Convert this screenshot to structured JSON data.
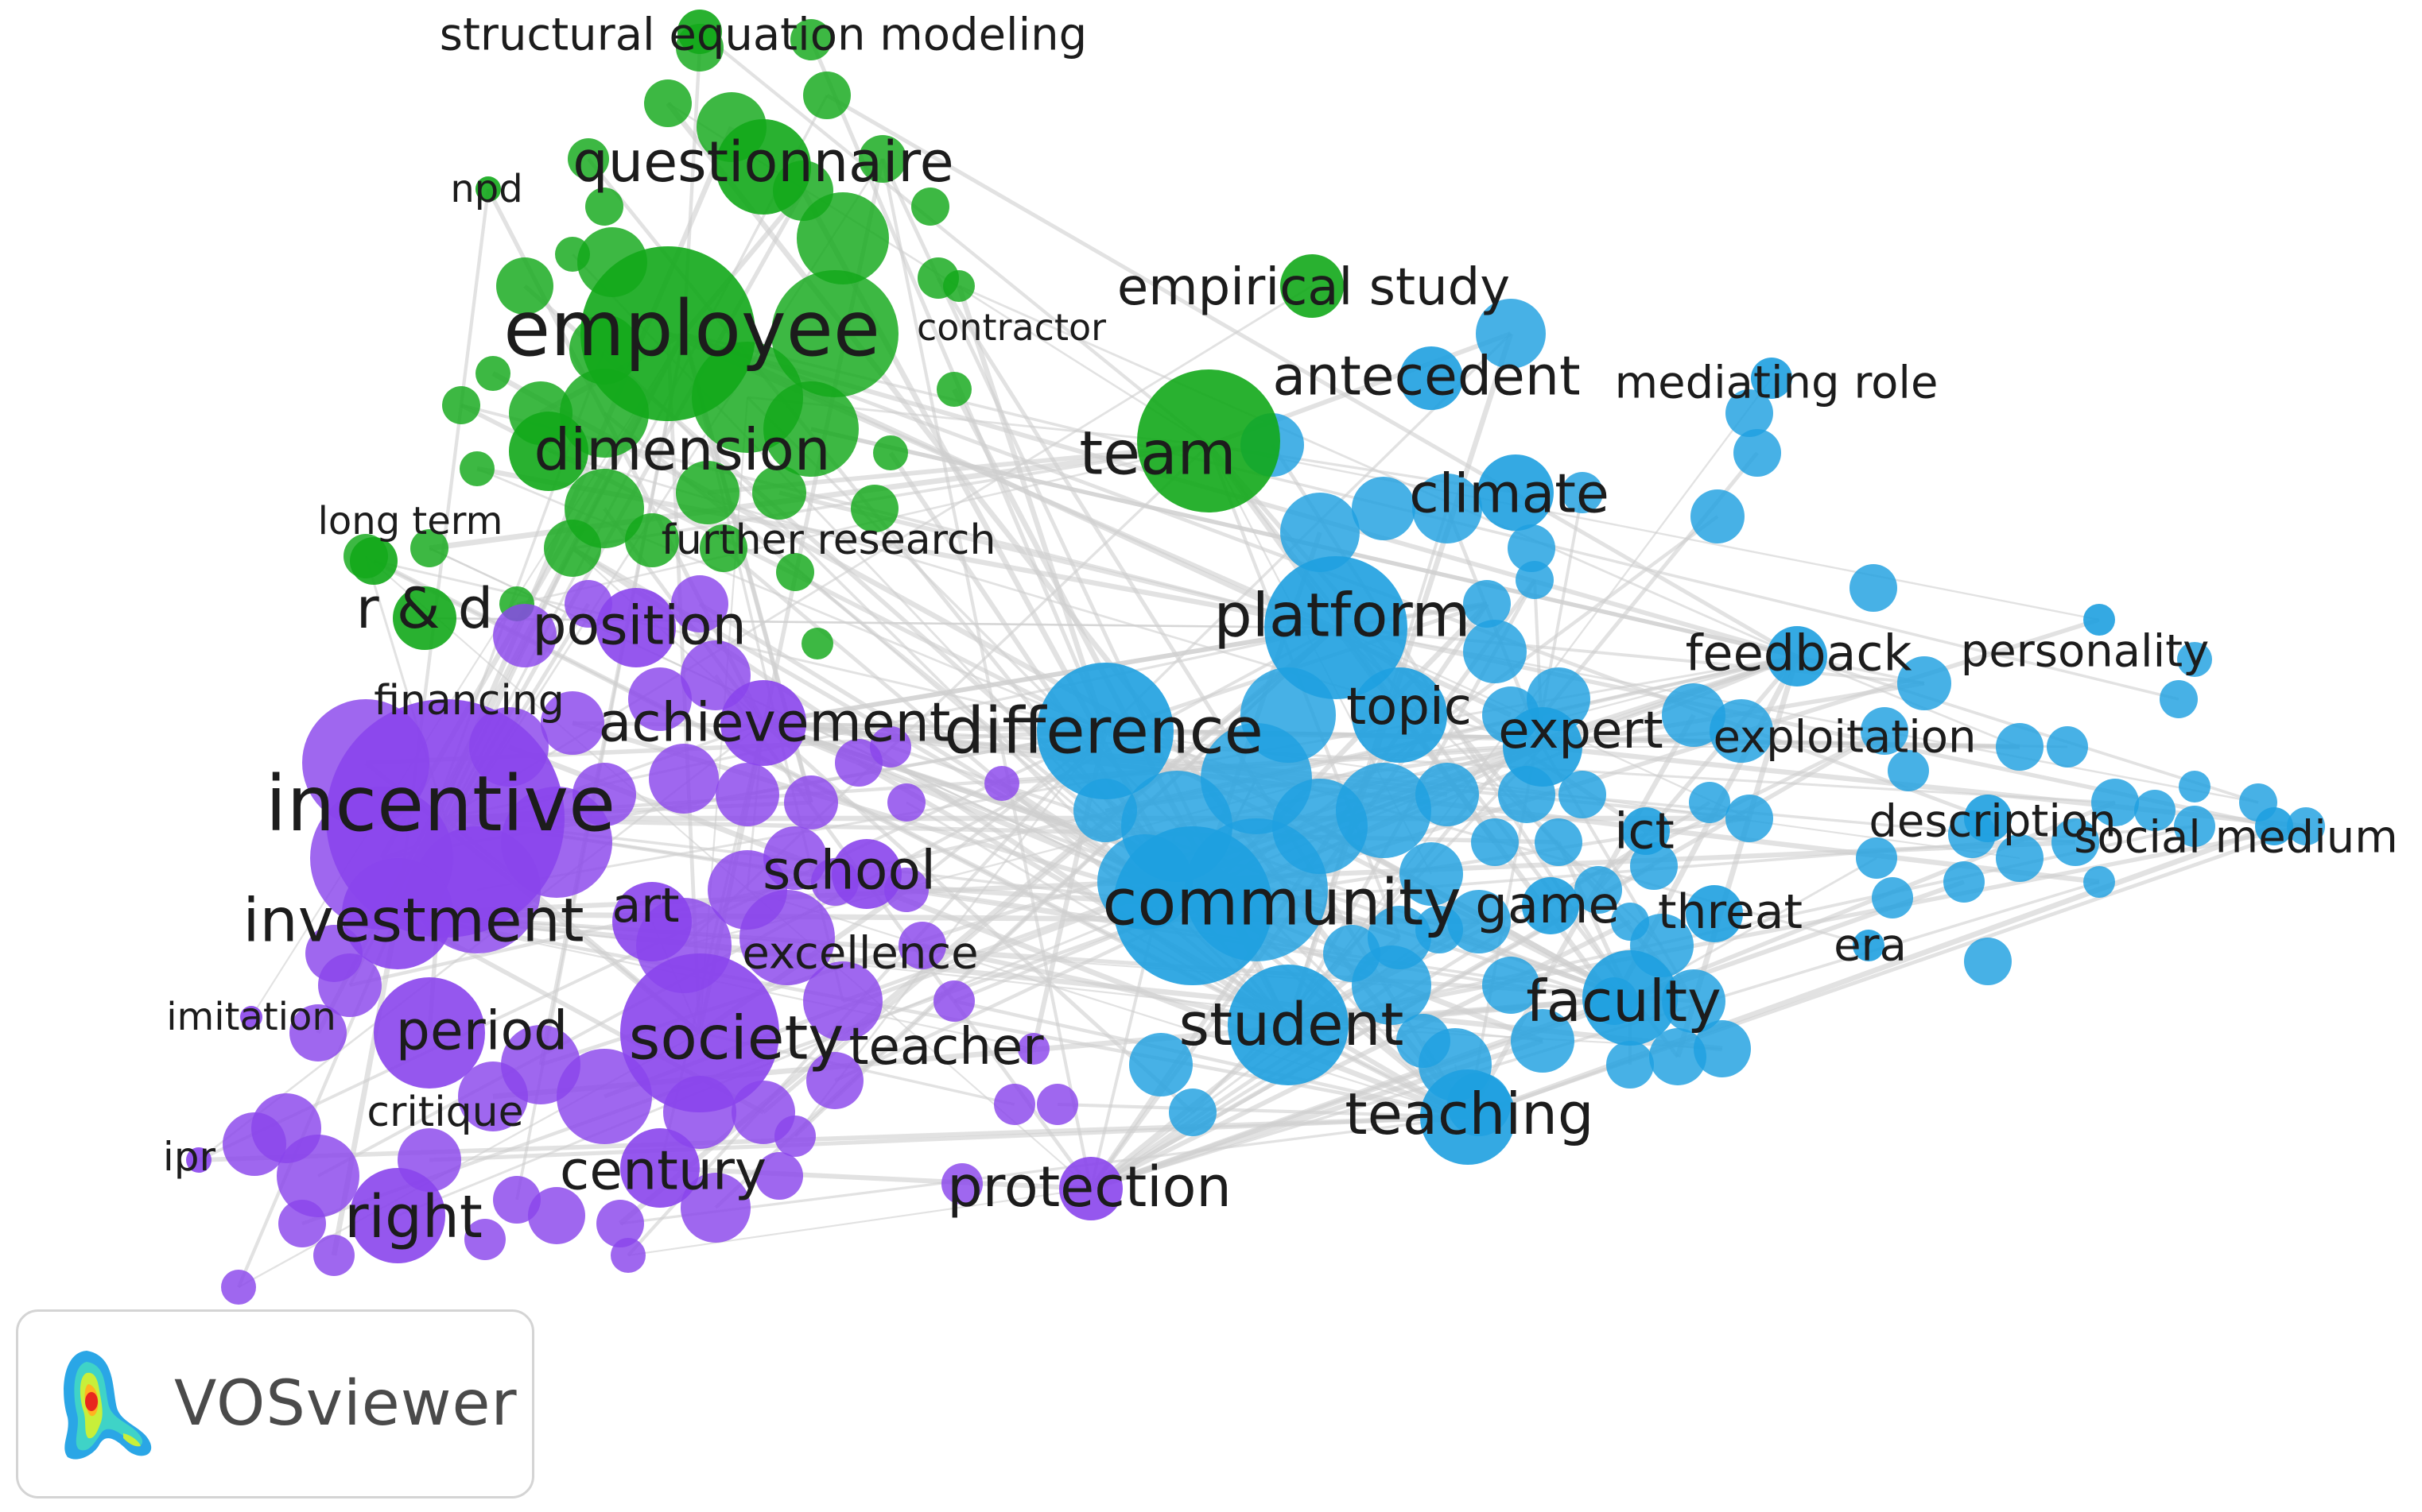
{
  "app": {
    "name": "VOSviewer"
  },
  "colors": {
    "green": "#12a81a",
    "purple": "#8a45ec",
    "blue": "#1ea0e0",
    "link": "#cfcfcf",
    "label": "#1c1c1c"
  },
  "clusters": [
    {
      "name": "green",
      "keywords": [
        "structural equation modeling",
        "questionnaire",
        "npd",
        "employee",
        "contractor",
        "empirical study",
        "team",
        "dimension",
        "long term",
        "further research",
        "r & d"
      ]
    },
    {
      "name": "purple",
      "keywords": [
        "position",
        "financing",
        "achievement",
        "incentive",
        "school",
        "investment",
        "art",
        "excellence",
        "imitation",
        "period",
        "society",
        "teacher",
        "critique",
        "century",
        "ipr",
        "right",
        "protection"
      ]
    },
    {
      "name": "blue",
      "keywords": [
        "antecedent",
        "mediating role",
        "climate",
        "platform",
        "feedback",
        "personality",
        "difference",
        "topic",
        "expert",
        "exploitation",
        "ict",
        "description",
        "social medium",
        "community",
        "game",
        "threat",
        "era",
        "faculty",
        "student",
        "teaching"
      ]
    }
  ]
}
